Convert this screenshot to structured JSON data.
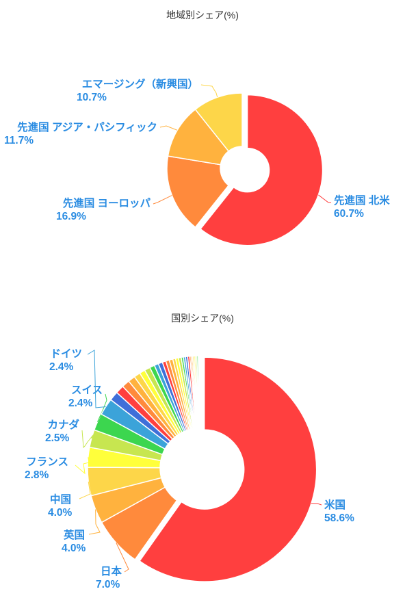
{
  "charts": [
    {
      "id": "region",
      "title": "地域別シェア(%)",
      "chart_data": {
        "type": "pie",
        "style": "donut",
        "categories": [
          "先進国 北米",
          "先進国 ヨーロッパ",
          "先進国 アジア・パシフィック",
          "エマージング（新興国）"
        ],
        "values": [
          60.7,
          16.9,
          11.7,
          10.7
        ],
        "value_labels": [
          "60.7%",
          "16.9%",
          "11.7%",
          "10.7%"
        ],
        "colors": [
          "#ff3f3f",
          "#ff8a3c",
          "#ffb23e",
          "#fdd649"
        ]
      }
    },
    {
      "id": "country",
      "title": "国別シェア(%)",
      "chart_data": {
        "type": "pie",
        "style": "donut",
        "categories": [
          "米国",
          "日本",
          "英国",
          "中国",
          "フランス",
          "カナダ",
          "スイス",
          "ドイツ"
        ],
        "values": [
          58.6,
          7.0,
          4.0,
          4.0,
          2.8,
          2.5,
          2.4,
          2.4
        ],
        "value_labels": [
          "58.6%",
          "7.0%",
          "4.0%",
          "4.0%",
          "2.8%",
          "2.5%",
          "2.4%",
          "2.4%"
        ],
        "colors": [
          "#ff3f3f",
          "#ff8a3c",
          "#ffb23e",
          "#fdd649",
          "#ffff3b",
          "#c7e650",
          "#3cd64f",
          "#3ba3d9",
          "#3f6fd9",
          "#ff3f3f",
          "#ff8a3c",
          "#ffb23e",
          "#fdd649",
          "#ffff3b",
          "#c7e650",
          "#3cd64f",
          "#3ba3d9",
          "#3f6fd9",
          "#ff3f3f",
          "#ff8a3c",
          "#ffb23e",
          "#fdd649",
          "#ffff3b",
          "#c7e650",
          "#3cd64f",
          "#3ba3d9",
          "#3f6fd9",
          "#ff3f3f",
          "#ff8a3c",
          "#ffb23e",
          "#fdd649",
          "#ffff3b",
          "#c7e650",
          "#3cd64f",
          "#3ba3d9",
          "#3f6fd9"
        ],
        "other_slices": [
          1.3,
          1.2,
          1.1,
          1.0,
          0.9,
          0.8,
          0.8,
          0.7,
          0.6,
          0.6,
          0.5,
          0.5,
          0.5,
          0.4,
          0.4,
          0.4,
          0.3,
          0.3,
          0.3,
          0.3,
          0.2,
          0.2,
          0.2,
          0.2,
          0.2,
          0.2,
          0.1,
          0.1
        ]
      }
    }
  ]
}
